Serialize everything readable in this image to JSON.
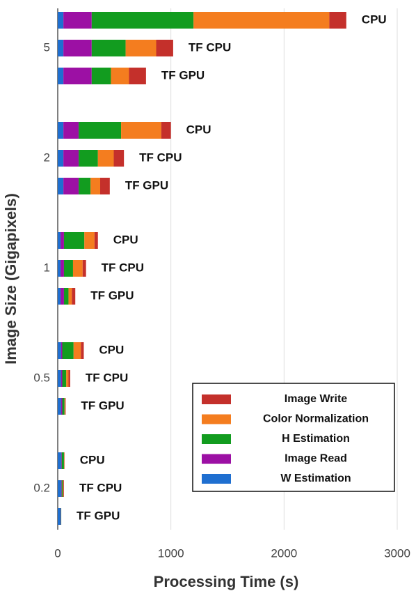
{
  "chart_data": {
    "type": "stacked-bar-horizontal",
    "x_label": "Processing Time (s)",
    "y_label": "Image Size (Gigapixels)",
    "groups": [
      "5",
      "2",
      "1",
      "0.5",
      "0.2"
    ],
    "categories": [
      "CPU",
      "TF CPU",
      "TF GPU",
      "CPU",
      "TF CPU",
      "TF GPU",
      "CPU",
      "TF CPU",
      "TF GPU",
      "CPU",
      "TF CPU",
      "TF GPU",
      "CPU",
      "TF CPU",
      "TF GPU"
    ],
    "series": [
      {
        "name": "W Estimation",
        "color": "#1f6fd0",
        "values": [
          50,
          50,
          50,
          50,
          50,
          50,
          25,
          25,
          25,
          30,
          30,
          30,
          30,
          30,
          25
        ]
      },
      {
        "name": "Image Read",
        "color": "#9c10a4",
        "values": [
          250,
          250,
          250,
          135,
          135,
          135,
          30,
          30,
          30,
          10,
          10,
          10,
          5,
          5,
          3
        ]
      },
      {
        "name": "H Estimation",
        "color": "#129c1f",
        "values": [
          900,
          300,
          170,
          375,
          170,
          105,
          180,
          80,
          40,
          100,
          35,
          20,
          20,
          10,
          3
        ]
      },
      {
        "name": "Color Normalization",
        "color": "#f47d1f",
        "values": [
          1200,
          270,
          160,
          355,
          140,
          85,
          90,
          85,
          30,
          65,
          20,
          5,
          3,
          5,
          0
        ]
      },
      {
        "name": "Image Write",
        "color": "#c4302b",
        "values": [
          150,
          150,
          150,
          85,
          90,
          85,
          30,
          30,
          30,
          25,
          15,
          5,
          2,
          5,
          0
        ]
      }
    ],
    "xlim": [
      0,
      3000
    ],
    "xticks": [
      0,
      1000,
      2000,
      3000
    ],
    "grid": true,
    "legend": "lower-right"
  }
}
